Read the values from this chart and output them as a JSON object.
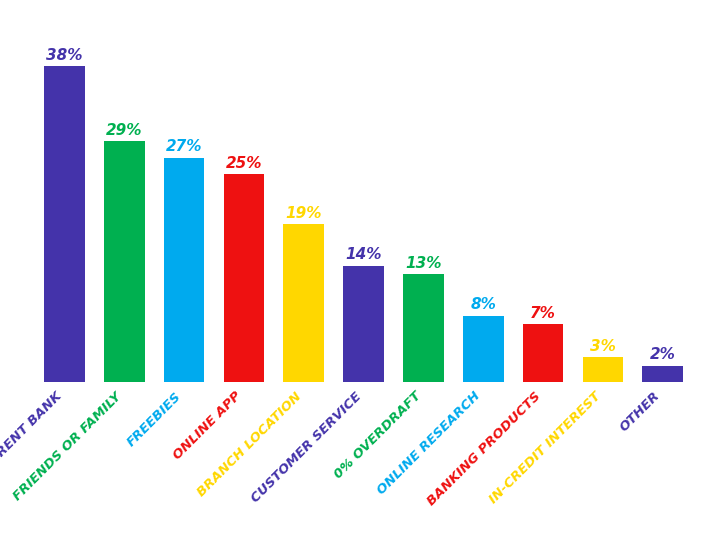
{
  "categories": [
    "CURRENT BANK",
    "FRIENDS OR FAMILY",
    "FREEBIES",
    "ONLINE APP",
    "BRANCH LOCATION",
    "CUSTOMER SERVICE",
    "0% OVERDRAFT",
    "ONLINE RESEARCH",
    "BANKING PRODUCTS",
    "IN-CREDIT INTEREST",
    "OTHER"
  ],
  "values": [
    38,
    29,
    27,
    25,
    19,
    14,
    13,
    8,
    7,
    3,
    2
  ],
  "bar_colors": [
    "#4433AA",
    "#00B050",
    "#00AAEE",
    "#EE1111",
    "#FFD700",
    "#4433AA",
    "#00B050",
    "#00AAEE",
    "#EE1111",
    "#FFD700",
    "#4433AA"
  ],
  "label_colors": [
    "#4433AA",
    "#00B050",
    "#00AAEE",
    "#EE1111",
    "#FFD700",
    "#4433AA",
    "#00B050",
    "#00AAEE",
    "#EE1111",
    "#FFD700",
    "#4433AA"
  ],
  "tick_colors": [
    "#4433AA",
    "#00B050",
    "#00AAEE",
    "#EE1111",
    "#FFD700",
    "#4433AA",
    "#00B050",
    "#00AAEE",
    "#EE1111",
    "#FFD700",
    "#4433AA"
  ],
  "background_color": "#FFFFFF",
  "ylim_max": 44,
  "label_fontsize": 11,
  "tick_fontsize": 9.5
}
